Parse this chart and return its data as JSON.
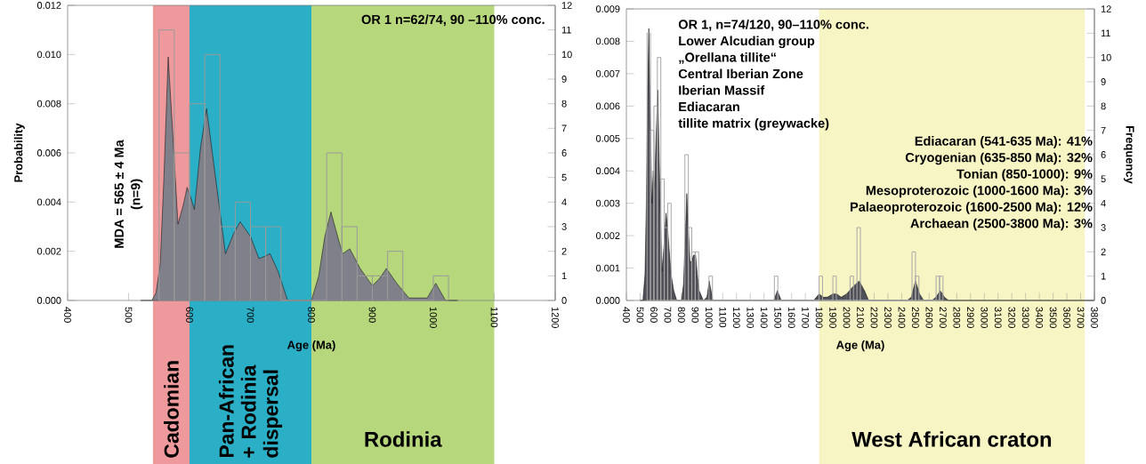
{
  "chart_data": [
    {
      "type": "area",
      "xlabel": "Age (Ma)",
      "ylabel": "Probability",
      "xlim": [
        400,
        1200
      ],
      "xticks": [
        400,
        500,
        600,
        700,
        800,
        900,
        1000,
        1100,
        1200
      ],
      "ylim": [
        0,
        0.012
      ],
      "yticks": [
        {
          "value": 0,
          "label": "0.000"
        },
        {
          "value": 0.002,
          "label": "0.002"
        },
        {
          "value": 0.004,
          "label": "0.004"
        },
        {
          "value": 0.006,
          "label": "0.006"
        },
        {
          "value": 0.008,
          "label": "0.008"
        },
        {
          "value": 0.01,
          "label": "0.010"
        },
        {
          "value": 0.012,
          "label": "0.012"
        }
      ],
      "y2lim": [
        0,
        12
      ],
      "y2ticks": [
        0,
        1,
        2,
        3,
        4,
        5,
        6,
        7,
        8,
        9,
        10,
        11,
        12
      ],
      "series": [
        {
          "color": "#80808a",
          "x": [
            520,
            538,
            545,
            552,
            558,
            565,
            572,
            581,
            590,
            596,
            602,
            608,
            618,
            628,
            640,
            659,
            672,
            683,
            700,
            714,
            724,
            732,
            745,
            761,
            780,
            800,
            812,
            822,
            832,
            842,
            851,
            863,
            880,
            900,
            912,
            923,
            940,
            960,
            990,
            1004,
            1020,
            1040
          ],
          "values": [
            0,
            0,
            0.0003,
            0.0015,
            0.005,
            0.0099,
            0.007,
            0.0031,
            0.0039,
            0.0046,
            0.0042,
            0.0037,
            0.0062,
            0.0078,
            0.0055,
            0.0019,
            0.0027,
            0.0032,
            0.0026,
            0.0017,
            0.0018,
            0.0019,
            0.0012,
            0,
            0,
            0,
            0.001,
            0.0026,
            0.0036,
            0.0027,
            0.0019,
            0.0021,
            0.0013,
            0.0006,
            0.0009,
            0.0013,
            0.0007,
            0.0001,
            0.0001,
            0.0007,
            0,
            0
          ]
        },
        {
          "type": "histogram",
          "axis": "y2",
          "color": "#9a9a9a",
          "bins": [
            550,
            575,
            600,
            625,
            650,
            675,
            700,
            725,
            750,
            775,
            800,
            825,
            850,
            875,
            900,
            925,
            950,
            975,
            1000,
            1025
          ],
          "values": [
            11,
            6,
            8,
            10,
            3,
            4,
            3,
            3,
            0,
            0,
            0,
            6,
            3,
            1,
            1,
            2,
            0,
            0,
            1
          ]
        }
      ],
      "bands": [
        {
          "axis": "x",
          "from": 540,
          "to": 600,
          "label": "Cadomian",
          "color": "#ee9a9c"
        },
        {
          "axis": "x",
          "from": 600,
          "to": 800,
          "label": "Pan-African + Rodinia dispersal",
          "color": "#2aafc6"
        },
        {
          "axis": "x",
          "from": 800,
          "to": 1100,
          "label": "Rodinia",
          "color": "#b6d77c"
        }
      ],
      "annotations": [
        "OR 1 n=62/74, 90 –110% conc.",
        "MDA = 565 ± 4 Ma",
        "(n=9)"
      ]
    },
    {
      "type": "area",
      "xlabel": "Age (Ma)",
      "y2label": "Frequency",
      "xlim": [
        400,
        3800
      ],
      "xticks": [
        400,
        500,
        600,
        700,
        800,
        900,
        1000,
        1100,
        1200,
        1300,
        1400,
        1500,
        1600,
        1700,
        1800,
        1900,
        2000,
        2100,
        2200,
        2300,
        2400,
        2500,
        2600,
        2700,
        2800,
        2900,
        3000,
        3100,
        3200,
        3300,
        3400,
        3500,
        3600,
        3700,
        3800
      ],
      "ylim": [
        0,
        0.009
      ],
      "yticks": [
        {
          "value": 0,
          "label": "0.000"
        },
        0.001,
        0.002,
        0.003,
        0.004,
        0.005,
        0.006,
        0.007,
        0.008,
        0.009
      ],
      "y2lim": [
        0,
        12
      ],
      "y2ticks": [
        0,
        1,
        2,
        3,
        4,
        5,
        6,
        7,
        8,
        9,
        10,
        11,
        12
      ],
      "series": [
        {
          "color": "#505058",
          "x": [
            500,
            520,
            535,
            545,
            555,
            563,
            572,
            585,
            595,
            605,
            615,
            628,
            640,
            658,
            675,
            688,
            700,
            710,
            725,
            744,
            766,
            800,
            815,
            828,
            839,
            850,
            862,
            873,
            888,
            903,
            915,
            929,
            959,
            985,
            1002,
            1028,
            1450,
            1470,
            1497,
            1525,
            1550,
            1760,
            1780,
            1800,
            1830,
            1860,
            1900,
            1928,
            1960,
            2000,
            2040,
            2091,
            2130,
            2160,
            2440,
            2470,
            2500,
            2530,
            2560,
            2620,
            2650,
            2680,
            2710,
            2740,
            3800
          ],
          "values": [
            0,
            0,
            0.0008,
            0.003,
            0.0065,
            0.0084,
            0.006,
            0.003,
            0.004,
            0.0035,
            0.005,
            0.0065,
            0.004,
            0.0009,
            0.0018,
            0.0027,
            0.0022,
            0.0016,
            0.0008,
            0.0003,
            0,
            0,
            0.0005,
            0.002,
            0.0033,
            0.0022,
            0.0012,
            0.0012,
            0.0014,
            0.0014,
            0.0008,
            0.0003,
            0,
            0.0001,
            0.0006,
            0,
            0,
            0,
            0.0003,
            0,
            0,
            0,
            0.0001,
            0.0002,
            0.0001,
            0.0001,
            0.0002,
            0.0002,
            0.0001,
            0.0002,
            0.0004,
            0.0006,
            0.0003,
            0,
            0,
            0.0001,
            0.0006,
            0.0002,
            0,
            0,
            0.0001,
            0.0003,
            0.0001,
            0,
            0
          ]
        },
        {
          "type": "histogram",
          "axis": "y2",
          "color": "#a8a8a8",
          "bins": [
            550,
            575,
            600,
            625,
            650,
            675,
            700,
            725,
            825,
            850,
            875,
            900,
            925,
            1000,
            1025,
            1475,
            1500,
            1800,
            1825,
            1900,
            1925,
            2025,
            2050,
            2075,
            2100,
            2475,
            2500,
            2525,
            2650,
            2675,
            2700
          ],
          "values": [
            11,
            7,
            8,
            10,
            5,
            3,
            4,
            0,
            6,
            3,
            2,
            2,
            0,
            1,
            0,
            1,
            0,
            1,
            0,
            1,
            0,
            1,
            0,
            3,
            0,
            2,
            1,
            0,
            1,
            1
          ]
        }
      ],
      "bands": [
        {
          "axis": "x",
          "from": 1800,
          "to": 3730,
          "label": "West African craton",
          "color": "#f8f5c4"
        }
      ],
      "annotations": [
        "OR 1, n=74/120, 90–110% conc.",
        "Lower Alcudian group",
        "„Orellana tillite“",
        "Central Iberian Zone",
        "Iberian Massif",
        "Ediacaran",
        "tillite matrix (greywacke)",
        "Ediacaran (541-635 Ma):  41%",
        "Cryogenian (635-850 Ma): 32%",
        "Tonian (850-1000):  9%",
        "Mesoproterozoic (1000-1600 Ma):  3%",
        "Palaeoproterozoic (1600-2500 Ma): 12%",
        "Archaean (2500-3800 Ma):  3%"
      ]
    }
  ]
}
